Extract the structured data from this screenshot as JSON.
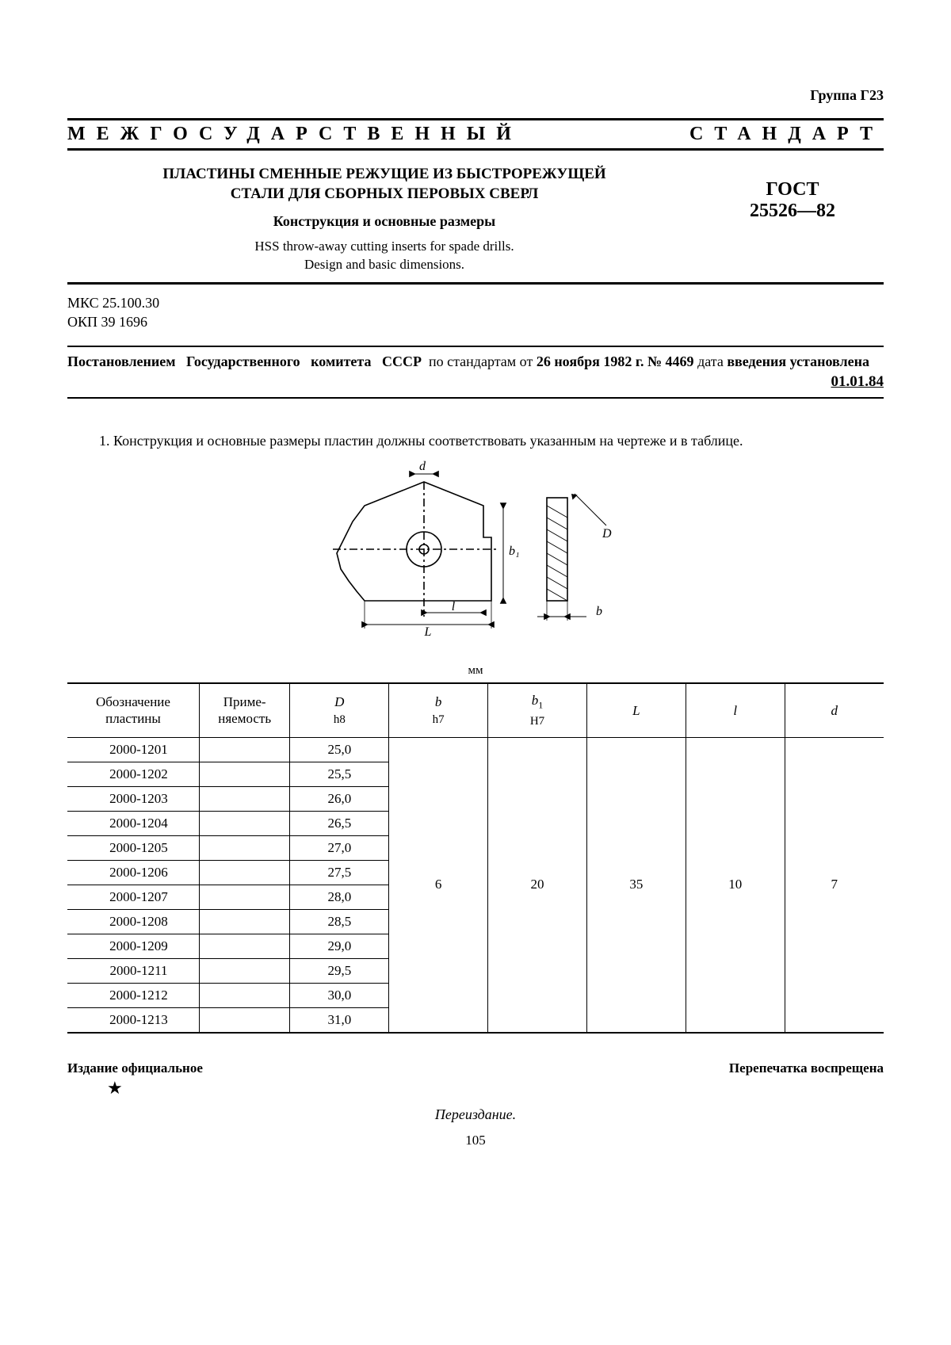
{
  "group_code": "Группа Г23",
  "banner_left": "МЕЖГОСУДАРСТВЕННЫЙ",
  "banner_right": "СТАНДАРТ",
  "title_line1": "ПЛАСТИНЫ СМЕННЫЕ РЕЖУЩИЕ ИЗ БЫСТРОРЕЖУЩЕЙ",
  "title_line2": "СТАЛИ ДЛЯ СБОРНЫХ ПЕРОВЫХ СВЕРЛ",
  "subtitle_ru": "Конструкция и основные размеры",
  "subtitle_en1": "HSS throw-away cutting inserts for spade drills.",
  "subtitle_en2": "Design and basic dimensions.",
  "gost_label": "ГОСТ",
  "gost_num": "25526—82",
  "code_mks": "МКС 25.100.30",
  "code_okp": "ОКП 39 1696",
  "decree_text": "Постановлением   Государственного   комитета   СССР   по стандартам от 26 ноября 1982 г. № 4469 дата введения установлена",
  "decree_date": "01.01.84",
  "clause_1": "1. Конструкция и основные размеры пластин должны соответствовать указанным на чертеже и в таблице.",
  "unit_label": "мм",
  "table": {
    "headers": {
      "designation": "Обозначение\nпластины",
      "application": "Приме-\nняемость",
      "D": "D",
      "D_sub": "h8",
      "b": "b",
      "b_sub": "h7",
      "b1": "b",
      "b1_suffix": "1",
      "b1_sub": "H7",
      "L": "L",
      "l": "l",
      "d": "d"
    },
    "rows": [
      {
        "label": "2000-1201",
        "D": "25,0"
      },
      {
        "label": "2000-1202",
        "D": "25,5"
      },
      {
        "label": "2000-1203",
        "D": "26,0"
      },
      {
        "label": "2000-1204",
        "D": "26,5"
      },
      {
        "label": "2000-1205",
        "D": "27,0"
      },
      {
        "label": "2000-1206",
        "D": "27,5"
      },
      {
        "label": "2000-1207",
        "D": "28,0"
      },
      {
        "label": "2000-1208",
        "D": "28,5"
      },
      {
        "label": "2000-1209",
        "D": "29,0"
      },
      {
        "label": "2000-1211",
        "D": "29,5"
      },
      {
        "label": "2000-1212",
        "D": "30,0"
      },
      {
        "label": "2000-1213",
        "D": "31,0"
      }
    ],
    "shared": {
      "b": "6",
      "b1": "20",
      "L": "35",
      "l": "10",
      "d": "7"
    }
  },
  "drawing": {
    "labels": {
      "d": "d",
      "b1": "b₁",
      "l": "l",
      "L": "L",
      "D": "D",
      "b": "b"
    },
    "stroke": "#000000",
    "stroke_width": 1.6
  },
  "footer_left": "Издание официальное",
  "footer_right": "Перепечатка воспрещена",
  "star": "★",
  "reissue": "Переиздание.",
  "page_num": "105"
}
